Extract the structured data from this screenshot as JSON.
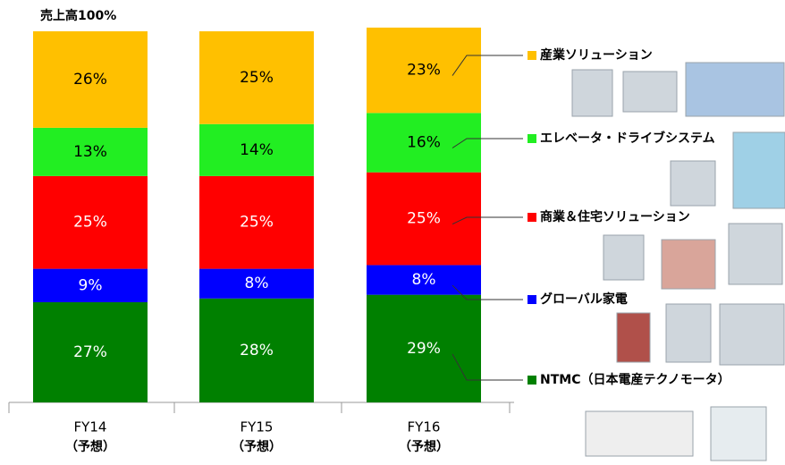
{
  "chart_data": {
    "type": "stacked_bar",
    "annotation": "売上高100%",
    "categories": [
      "FY14",
      "FY15",
      "FY16"
    ],
    "category_notes": [
      "（予想）",
      "（予想）",
      "（予想）"
    ],
    "ylim": [
      0,
      100
    ],
    "series": [
      {
        "name": "NTMC（日本電産テクノモータ）",
        "color": "#008000",
        "label_color": "#ffffff",
        "values": [
          27,
          28,
          29
        ],
        "value_labels": [
          "27%",
          "28%",
          "29%"
        ]
      },
      {
        "name": "グローバル家電",
        "color": "#0000ff",
        "label_color": "#ffffff",
        "values": [
          9,
          8,
          8
        ],
        "value_labels": [
          "9%",
          "8%",
          "8%"
        ]
      },
      {
        "name": "商業＆住宅ソリューション",
        "color": "#ff0000",
        "label_color": "#ffffff",
        "values": [
          25,
          25,
          25
        ],
        "value_labels": [
          "25%",
          "25%",
          "25%"
        ]
      },
      {
        "name": "エレベータ・ドライブシステム",
        "color": "#22ee22",
        "label_color": "#000000",
        "values": [
          13,
          14,
          16
        ],
        "value_labels": [
          "13%",
          "14%",
          "16%"
        ]
      },
      {
        "name": "産業ソリューション",
        "color": "#ffc000",
        "label_color": "#000000",
        "values": [
          26,
          25,
          23
        ],
        "value_labels": [
          "26%",
          "25%",
          "23%"
        ]
      }
    ]
  }
}
